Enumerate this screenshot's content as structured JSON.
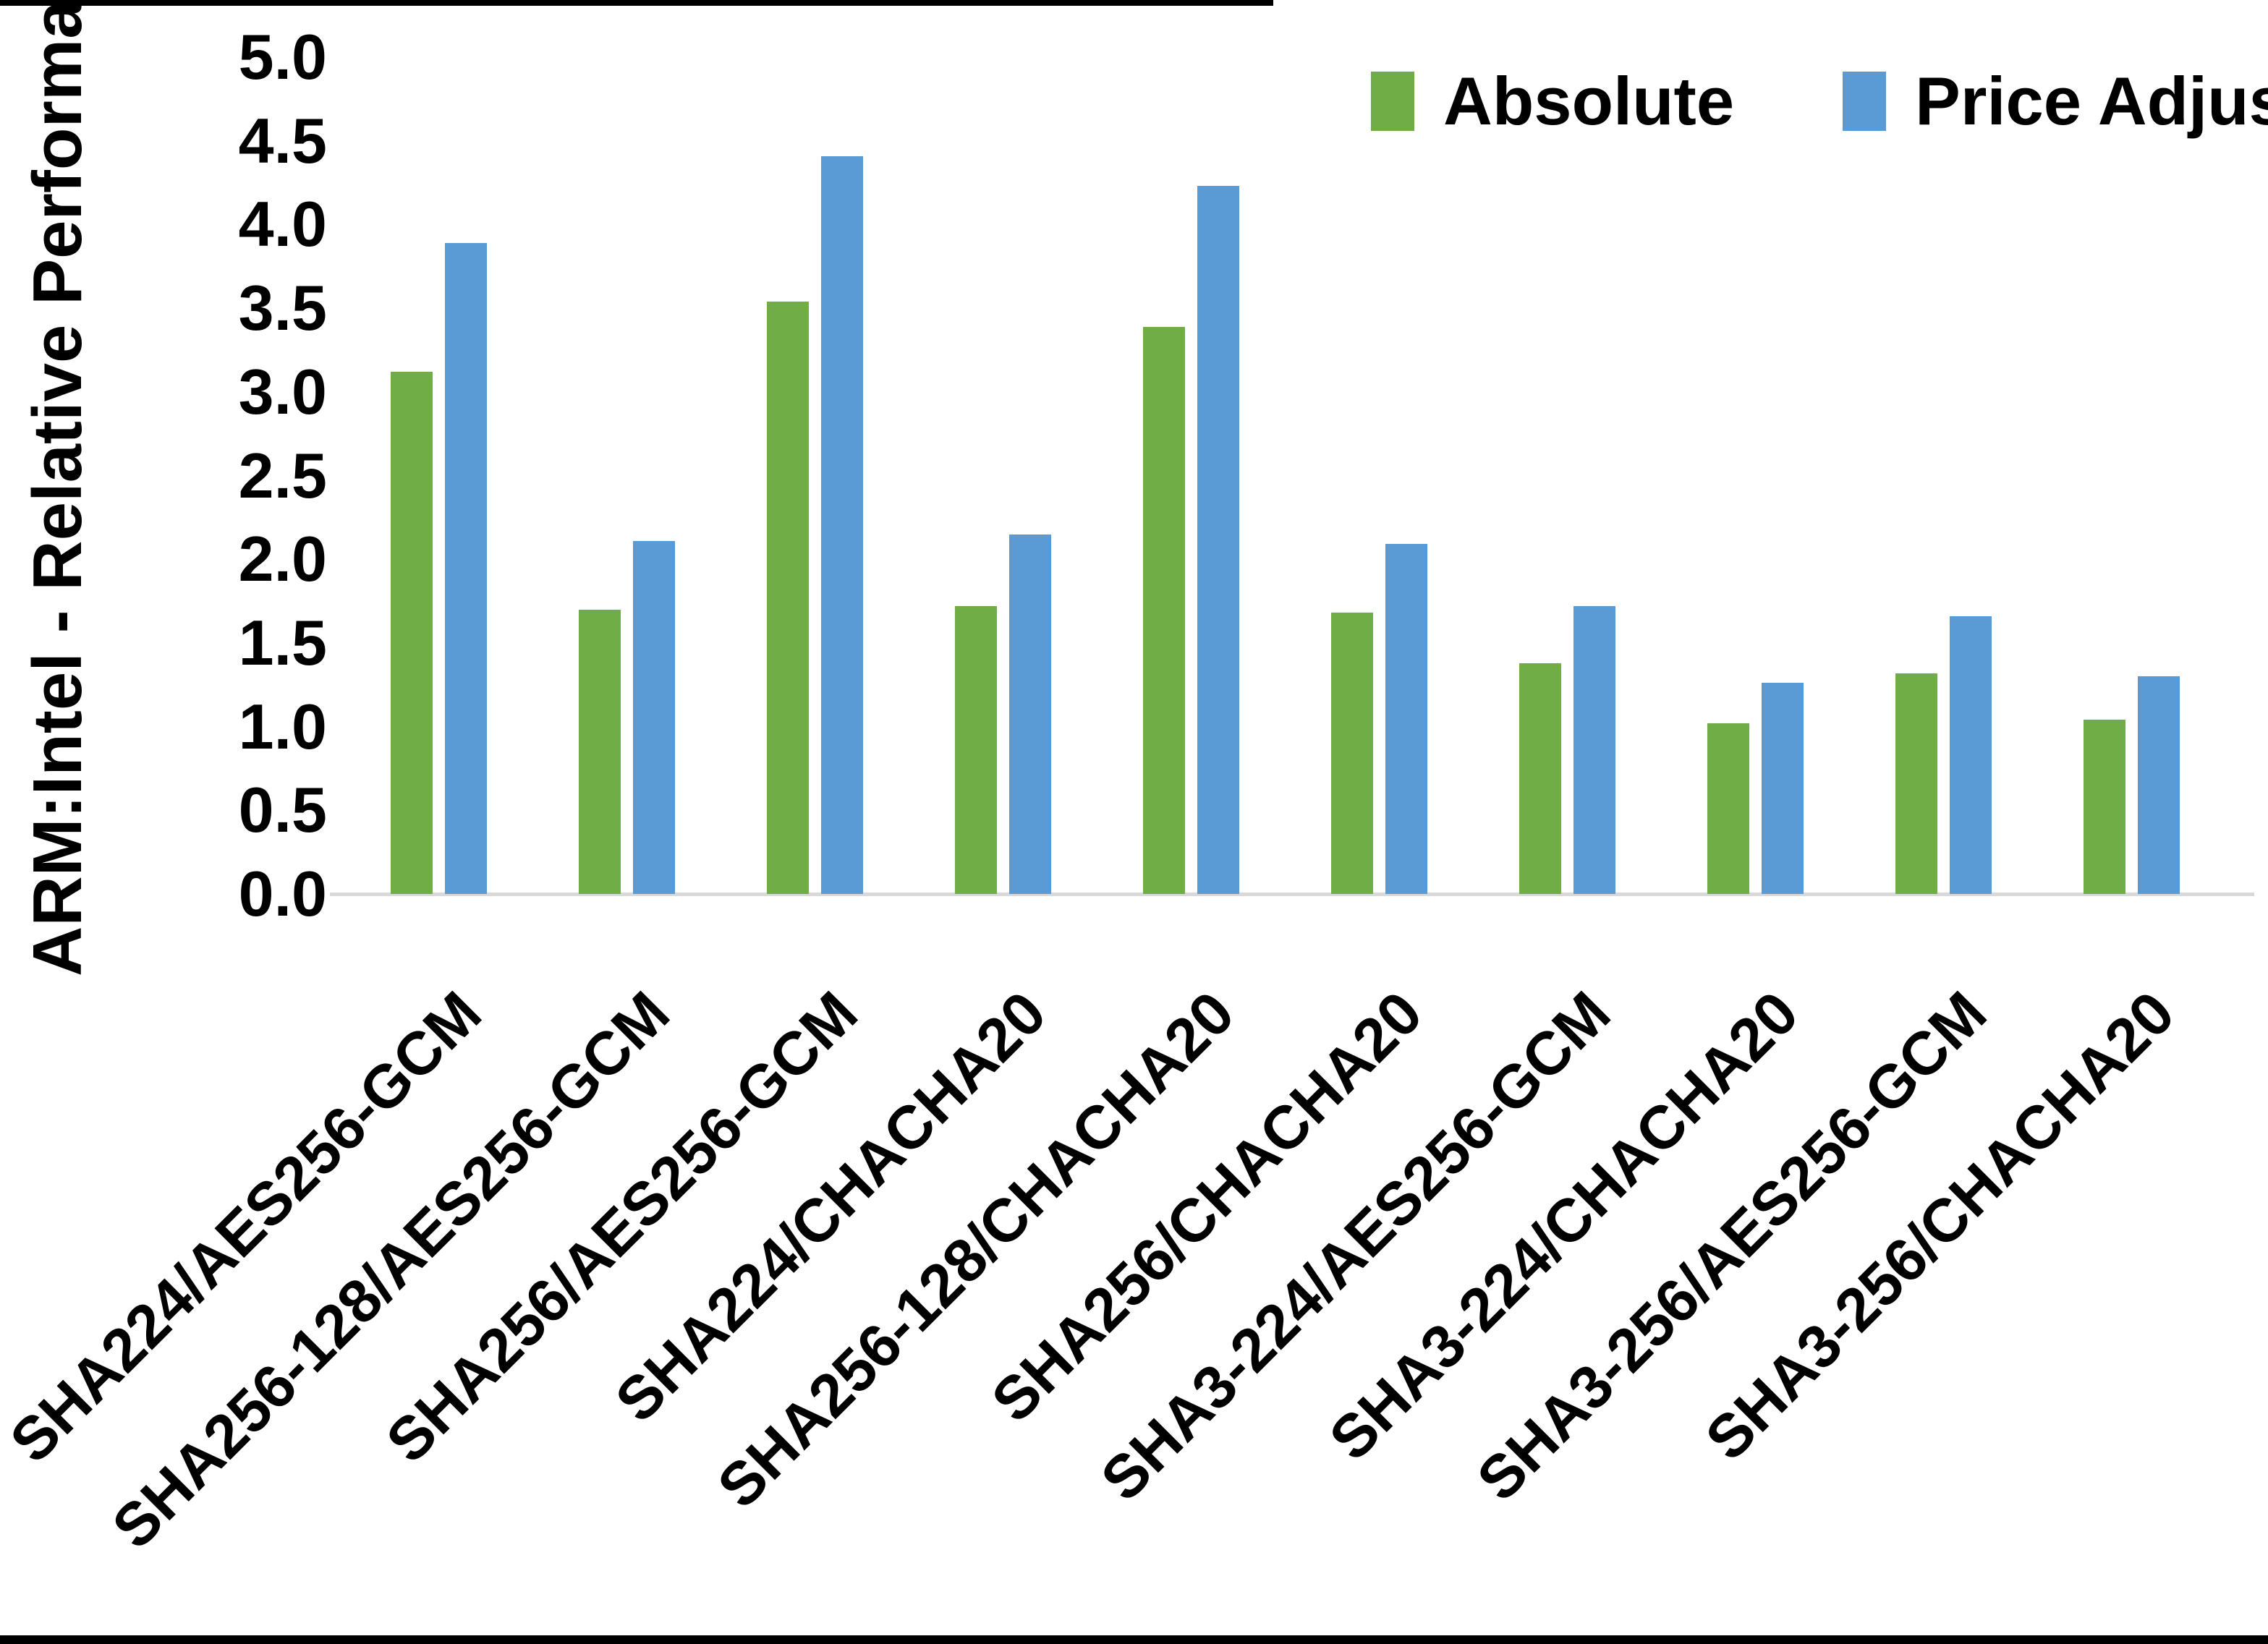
{
  "chart_data": {
    "type": "bar",
    "title": "",
    "xlabel": "",
    "ylabel": "ARM:Intel - Relative Performance",
    "ylim": [
      0.0,
      5.0
    ],
    "ytick_step": 0.5,
    "y_ticks": [
      "5.0",
      "4.5",
      "4.0",
      "3.5",
      "3.0",
      "2.5",
      "2.0",
      "1.5",
      "1.0",
      "0.5",
      "0.0"
    ],
    "grid": "off",
    "legend_position": "top-right",
    "categories": [
      "SHA224/AES256-GCM",
      "SHA256-128/AES256-GCM",
      "SHA256/AES256-GCM",
      "SHA224/CHACHA20",
      "SHA256-128/CHACHA20",
      "SHA256/CHACHA20",
      "SHA3-224/AES256-GCM",
      "SHA3-224/CHACHA20",
      "SHA3-256/AES256-GCM",
      "SHA3-256/CHACHA20"
    ],
    "series": [
      {
        "name": "Absolute",
        "color": "#70AD47",
        "values": [
          3.12,
          1.7,
          3.54,
          1.72,
          3.39,
          1.68,
          1.38,
          1.02,
          1.32,
          1.04
        ]
      },
      {
        "name": "Price Adjusted",
        "color": "#5B9BD5",
        "values": [
          3.89,
          2.11,
          4.41,
          2.15,
          4.23,
          2.09,
          1.72,
          1.26,
          1.66,
          1.3
        ]
      }
    ]
  },
  "colors": {
    "background": "#FFFFFF",
    "axis_line": "#D9D9D9",
    "text": "#000000",
    "scan_border": "#000000"
  }
}
